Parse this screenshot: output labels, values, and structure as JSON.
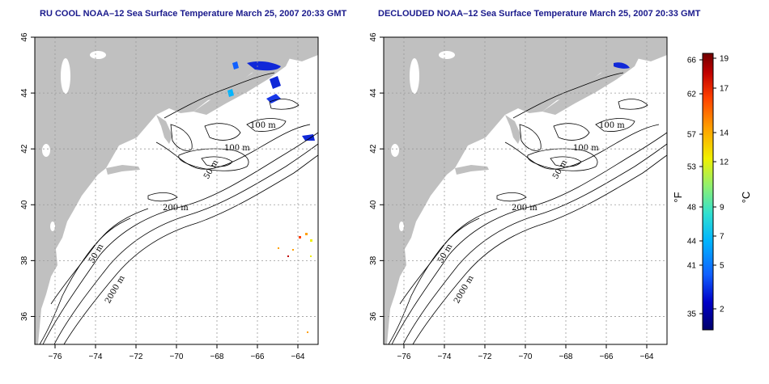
{
  "panels": [
    {
      "title": "RU COOL NOAA–12 Sea Surface Temperature March 25, 2007 20:33 GMT",
      "contour_labels": [
        "100 m",
        "100 m",
        "50 m",
        "200 m",
        "50 m",
        "2000 m"
      ]
    },
    {
      "title": "DECLOUDED NOAA–12 Sea Surface Temperature March 25, 2007 20:33 GMT",
      "contour_labels": [
        "100 m",
        "100 m",
        "50 m",
        "200 m",
        "50 m",
        "2000 m"
      ]
    }
  ],
  "map_axes": {
    "lon_ticks": [
      "−76",
      "−74",
      "−72",
      "−70",
      "−68",
      "−66",
      "−64"
    ],
    "lat_ticks": [
      "36",
      "38",
      "40",
      "42",
      "44",
      "46"
    ],
    "lon_range": [
      -77,
      -63
    ],
    "lat_range": [
      35,
      46
    ],
    "grid": "dotted"
  },
  "colorbar": {
    "fahrenheit_label": "°F",
    "celsius_label": "°C",
    "fahrenheit_ticks": [
      "66",
      "62",
      "57",
      "53",
      "48",
      "44",
      "41",
      "35"
    ],
    "celsius_ticks": [
      "19",
      "17",
      "14",
      "12",
      "9",
      "7",
      "5",
      "2"
    ],
    "colors": [
      "#00006a",
      "#0000c8",
      "#1060ff",
      "#00b4ff",
      "#30e0d0",
      "#90f070",
      "#f0f000",
      "#ffa000",
      "#ff4000",
      "#c00000",
      "#700000"
    ]
  },
  "colors": {
    "land": "#c0c0c0",
    "contour": "#000000",
    "title": "#1a1a8c",
    "cold_sst": "#1028d8"
  }
}
